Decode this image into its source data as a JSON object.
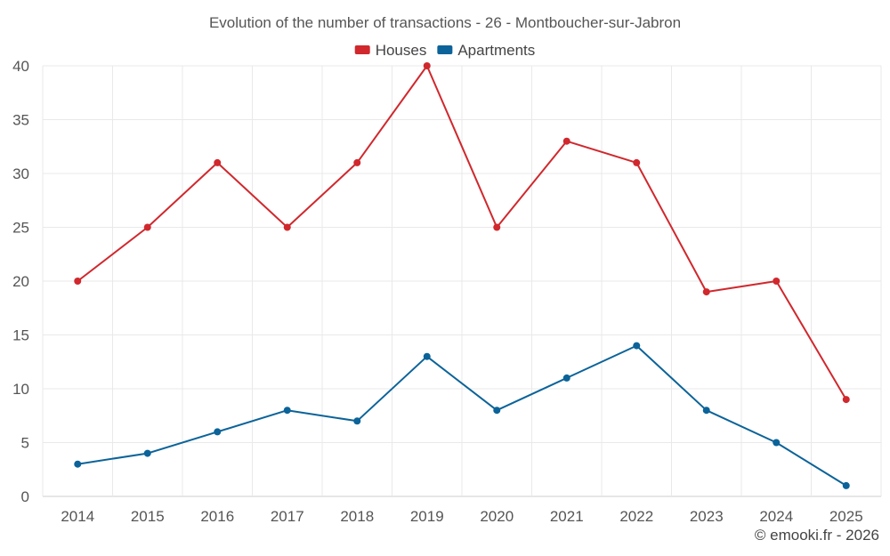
{
  "chart_data": {
    "type": "line",
    "title": "Evolution of the number of transactions - 26 - Montboucher-sur-Jabron",
    "xlabel": "",
    "ylabel": "",
    "categories": [
      "2014",
      "2015",
      "2016",
      "2017",
      "2018",
      "2019",
      "2020",
      "2021",
      "2022",
      "2023",
      "2024",
      "2025"
    ],
    "ylim": [
      0,
      40
    ],
    "yticks": [
      0,
      5,
      10,
      15,
      20,
      25,
      30,
      35,
      40
    ],
    "grid": true,
    "legend_position": "top-center",
    "series": [
      {
        "name": "Houses",
        "color": "#d0282d",
        "values": [
          20,
          25,
          31,
          25,
          31,
          40,
          25,
          33,
          31,
          19,
          20,
          9
        ]
      },
      {
        "name": "Apartments",
        "color": "#0b6399",
        "values": [
          3,
          4,
          6,
          8,
          7,
          13,
          8,
          11,
          14,
          8,
          5,
          1
        ]
      }
    ]
  },
  "footer": {
    "credit": "© emooki.fr - 2026"
  }
}
